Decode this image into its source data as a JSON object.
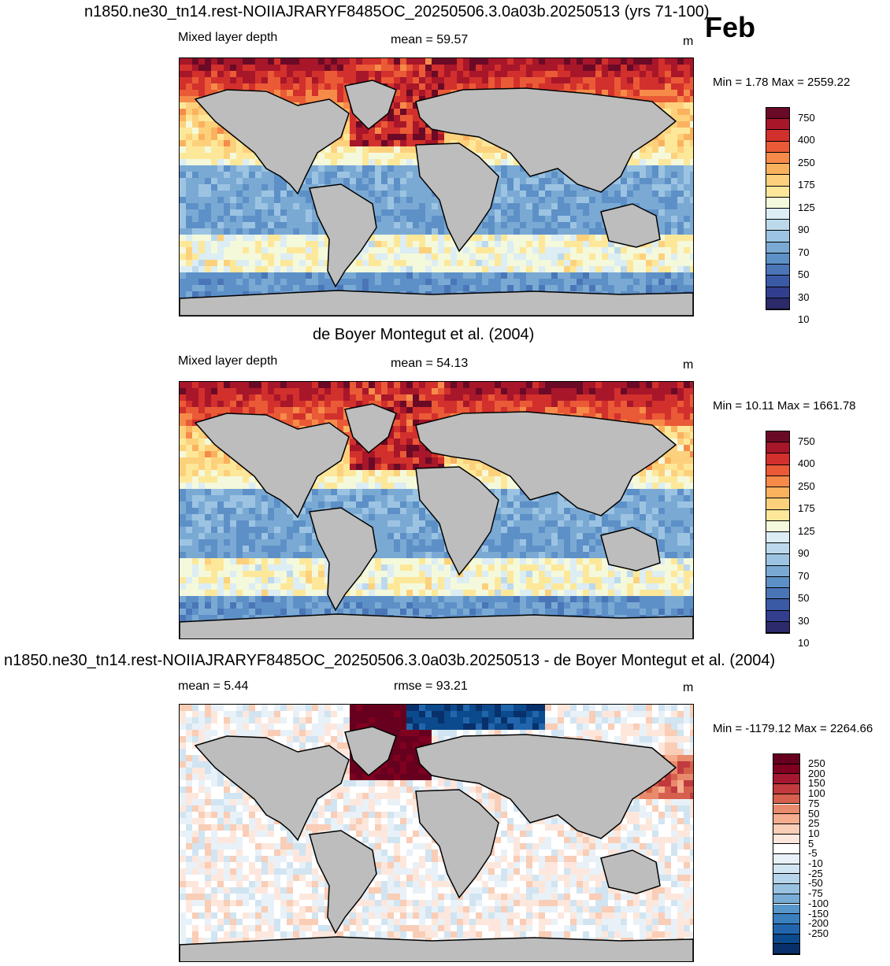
{
  "header": {
    "title": "n1850.ne30_tn14.rest-NOIIAJRARYF8485OC_20250506.3.0a03b.20250513 (yrs 71-100)",
    "month": "Feb"
  },
  "colors": {
    "land": "#bdbdbd",
    "mld_scale": [
      "#2c2a6b",
      "#323f8f",
      "#3b5aa6",
      "#4a76b8",
      "#5d90c7",
      "#7aaad4",
      "#9cc4e2",
      "#bcd9ec",
      "#dcedf4",
      "#f4f9dc",
      "#fde89a",
      "#fdd17c",
      "#fbb25f",
      "#f68b49",
      "#ea5a36",
      "#d2302c",
      "#a8162a",
      "#6b0a26"
    ],
    "diff_scale": [
      "#08306b",
      "#0b4a8c",
      "#2166ac",
      "#3a80bf",
      "#5696cb",
      "#78acd6",
      "#99c2e1",
      "#b6d4ea",
      "#d1e4f1",
      "#e8f1f8",
      "#ffffff",
      "#fde7dc",
      "#f9cdb6",
      "#f4ad8d",
      "#e88a6c",
      "#d6604d",
      "#c13a3e",
      "#a51930",
      "#800020",
      "#67001f"
    ]
  },
  "chart_data": [
    {
      "type": "heatmap",
      "panel": "model",
      "left_label": "Mixed layer depth",
      "stat": "mean =  59.57",
      "units": "m",
      "min_max": "Min =   1.78 Max = 2559.22",
      "colorbar_labels": [
        "750",
        "400",
        "250",
        "175",
        "125",
        "90",
        "70",
        "50",
        "30",
        "10"
      ]
    },
    {
      "type": "heatmap",
      "panel": "observation",
      "title": "de Boyer Montegut et al. (2004)",
      "left_label": "Mixed layer depth",
      "stat": "mean =  54.13",
      "units": "m",
      "min_max": "Min =  10.11 Max = 1661.78",
      "colorbar_labels": [
        "750",
        "400",
        "250",
        "175",
        "125",
        "90",
        "70",
        "50",
        "30",
        "10"
      ]
    },
    {
      "type": "heatmap",
      "panel": "difference",
      "title": "n1850.ne30_tn14.rest-NOIIAJRARYF8485OC_20250506.3.0a03b.20250513 - de Boyer Montegut et al. (2004)",
      "left_label": "mean =   5.44",
      "stat": "rmse =  93.21",
      "units": "m",
      "min_max": "Min = -1179.12 Max = 2264.66",
      "colorbar_labels": [
        "250",
        "200",
        "150",
        "100",
        "75",
        "50",
        "25",
        "10",
        "5",
        "-5",
        "-10",
        "-25",
        "-50",
        "-75",
        "-100",
        "-150",
        "-200",
        "-250"
      ]
    }
  ]
}
